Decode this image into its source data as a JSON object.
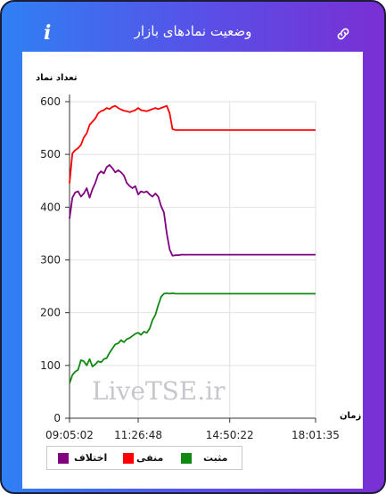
{
  "header": {
    "title": "وضعیت نمادهای بازار",
    "info_icon": "info-icon",
    "link_icon": "link-icon"
  },
  "colors": {
    "positive": "#118811",
    "negative": "#ff0000",
    "difference": "#800080",
    "accent": "#5a4ee6"
  },
  "watermark": "LiveTSE.ir",
  "chart_data": {
    "type": "line",
    "ylabel": "تعداد نماد",
    "xlabel": "زمان",
    "ylim": [
      0,
      600
    ],
    "yticks": [
      0,
      100,
      200,
      300,
      400,
      500,
      600
    ],
    "xticks": [
      "09:05:02",
      "11:26:48",
      "14:50:22",
      "18:01:35"
    ],
    "x_tick_indices": [
      0,
      24,
      56,
      86
    ],
    "grid": true,
    "legend_placement": "bottom-left",
    "series": [
      {
        "name": "منفی",
        "color": "#ff0000",
        "values": [
          445,
          502,
          508,
          512,
          518,
          532,
          540,
          556,
          562,
          568,
          578,
          582,
          584,
          588,
          586,
          590,
          592,
          588,
          585,
          583,
          582,
          580,
          582,
          584,
          588,
          584,
          583,
          582,
          584,
          586,
          588,
          586,
          588,
          590,
          592,
          578,
          548,
          546,
          546,
          546,
          546,
          546,
          546,
          546,
          546,
          546,
          546,
          546,
          546,
          546,
          546,
          546,
          546,
          546,
          546,
          546,
          546,
          546,
          546,
          546,
          546,
          546,
          546,
          546,
          546,
          546,
          546,
          546,
          546,
          546,
          546,
          546,
          546,
          546,
          546,
          546,
          546,
          546,
          546,
          546,
          546,
          546,
          546,
          546,
          546,
          546,
          546
        ]
      },
      {
        "name": "اختلاف",
        "color": "#800080",
        "values": [
          378,
          418,
          428,
          430,
          420,
          426,
          436,
          418,
          434,
          446,
          462,
          468,
          464,
          476,
          480,
          474,
          466,
          470,
          466,
          460,
          446,
          440,
          436,
          440,
          424,
          430,
          428,
          430,
          424,
          420,
          426,
          420,
          402,
          390,
          350,
          320,
          308,
          309,
          309,
          310,
          310,
          310,
          310,
          310,
          310,
          310,
          310,
          310,
          310,
          310,
          310,
          310,
          310,
          310,
          310,
          310,
          310,
          310,
          310,
          310,
          310,
          310,
          310,
          310,
          310,
          310,
          310,
          310,
          310,
          310,
          310,
          310,
          310,
          310,
          310,
          310,
          310,
          310,
          310,
          310,
          310,
          310,
          310,
          310,
          310,
          310,
          310
        ]
      },
      {
        "name": "مثبت",
        "color": "#118811",
        "values": [
          66,
          82,
          88,
          92,
          110,
          108,
          100,
          112,
          98,
          102,
          108,
          106,
          112,
          114,
          124,
          132,
          140,
          142,
          148,
          144,
          150,
          152,
          156,
          160,
          162,
          158,
          164,
          162,
          170,
          186,
          196,
          214,
          230,
          236,
          237,
          236,
          237,
          236,
          236,
          236,
          236,
          236,
          236,
          236,
          236,
          236,
          236,
          236,
          236,
          236,
          236,
          236,
          236,
          236,
          236,
          236,
          236,
          236,
          236,
          236,
          236,
          236,
          236,
          236,
          236,
          236,
          236,
          236,
          236,
          236,
          236,
          236,
          236,
          236,
          236,
          236,
          236,
          236,
          236,
          236,
          236,
          236,
          236,
          236,
          236,
          236,
          236
        ]
      }
    ],
    "legend": [
      "مثبت",
      "منفی",
      "اختلاف"
    ]
  }
}
